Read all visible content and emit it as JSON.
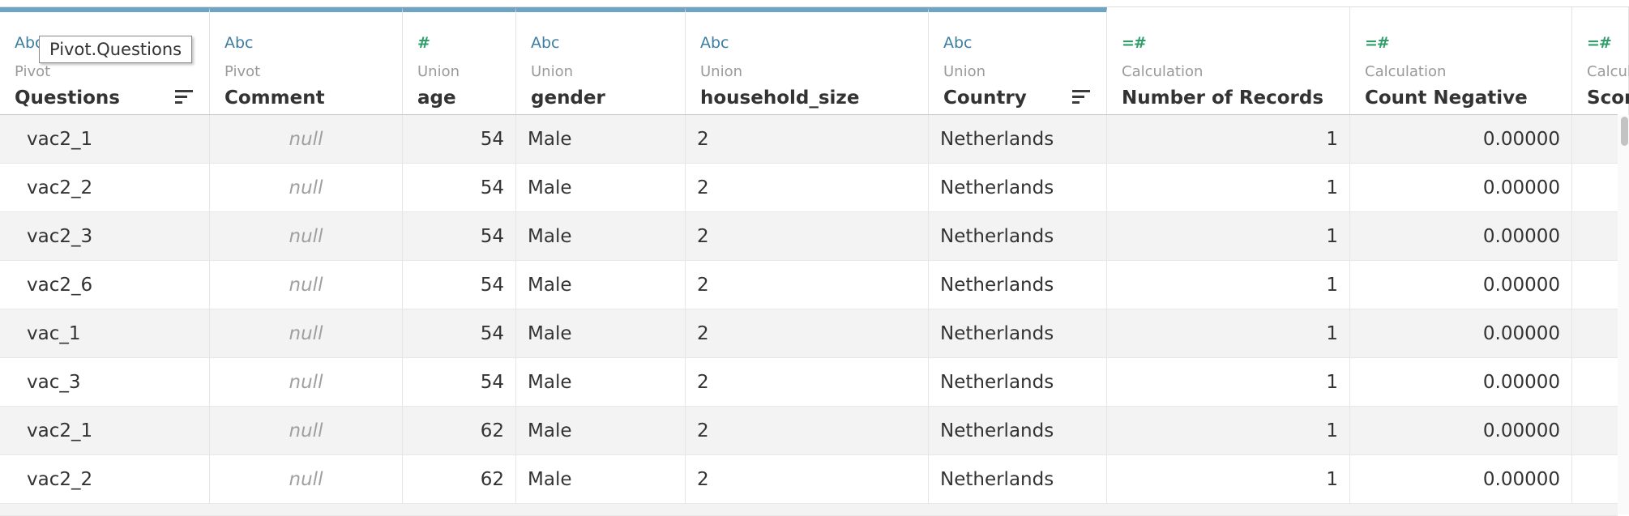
{
  "columns": [
    {
      "type": "Abc",
      "source": "Pivot",
      "name": "Questions",
      "sort": true
    },
    {
      "type": "Abc",
      "source": "Pivot",
      "name": "Comment",
      "sort": false
    },
    {
      "type": "#",
      "source": "Union",
      "name": "age",
      "sort": false
    },
    {
      "type": "Abc",
      "source": "Union",
      "name": "gender",
      "sort": false
    },
    {
      "type": "Abc",
      "source": "Union",
      "name": "household_size",
      "sort": false
    },
    {
      "type": "Abc",
      "source": "Union",
      "name": "Country",
      "sort": true
    },
    {
      "type": "=#",
      "source": "Calculation",
      "name": "Number of Records",
      "sort": false
    },
    {
      "type": "=#",
      "source": "Calculation",
      "name": "Count Negative",
      "sort": false
    },
    {
      "type": "=#",
      "source": "Calcula",
      "name": "Scor",
      "sort": false
    }
  ],
  "rows": [
    [
      "vac2_1",
      "null",
      "54",
      "Male",
      "2",
      "Netherlands",
      "1",
      "0.00000"
    ],
    [
      "vac2_2",
      "null",
      "54",
      "Male",
      "2",
      "Netherlands",
      "1",
      "0.00000"
    ],
    [
      "vac2_3",
      "null",
      "54",
      "Male",
      "2",
      "Netherlands",
      "1",
      "0.00000"
    ],
    [
      "vac2_6",
      "null",
      "54",
      "Male",
      "2",
      "Netherlands",
      "1",
      "0.00000"
    ],
    [
      "vac_1",
      "null",
      "54",
      "Male",
      "2",
      "Netherlands",
      "1",
      "0.00000"
    ],
    [
      "vac_3",
      "null",
      "54",
      "Male",
      "2",
      "Netherlands",
      "1",
      "0.00000"
    ],
    [
      "vac2_1",
      "null",
      "62",
      "Male",
      "2",
      "Netherlands",
      "1",
      "0.00000"
    ],
    [
      "vac2_2",
      "null",
      "62",
      "Male",
      "2",
      "Netherlands",
      "1",
      "0.00000"
    ]
  ],
  "tooltip": "Pivot.Questions",
  "colors": {
    "selected_header": "#6fa3c4",
    "string_type": "#3b7ea1",
    "number_type": "#2f9e6a",
    "row_alt": "#f3f3f3"
  }
}
